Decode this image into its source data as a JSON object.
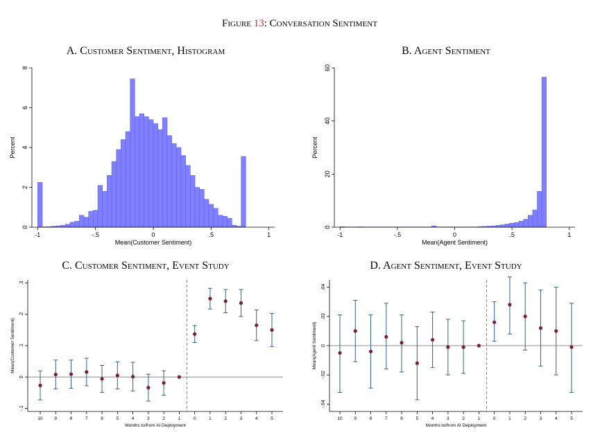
{
  "figure": {
    "label": "Figure",
    "number": "13",
    "sep": ":",
    "title": "Conversation Sentiment",
    "number_color": "#d62728"
  },
  "chart_data": [
    {
      "id": "A",
      "type": "bar",
      "title": "A. Customer Sentiment, Histogram",
      "xlabel": "Mean(Customer Sentiment)",
      "ylabel": "Percent",
      "xlim": [
        -1.05,
        1.05
      ],
      "ylim": [
        0,
        8
      ],
      "xticks": [
        -1,
        -0.5,
        0,
        0.5,
        1
      ],
      "xtick_labels": [
        "-1",
        "-.5",
        "0",
        ".5",
        "1"
      ],
      "yticks": [
        0,
        2,
        4,
        6,
        8
      ],
      "ytick_labels": [
        "0",
        "2",
        "4",
        "6",
        "8"
      ],
      "bin_start": -1,
      "bin_width": 0.04,
      "values": [
        2.25,
        0.02,
        0.03,
        0.05,
        0.07,
        0.1,
        0.15,
        0.25,
        0.3,
        0.6,
        0.5,
        0.8,
        0.85,
        2.1,
        1.8,
        2.6,
        3.3,
        3.9,
        4.4,
        4.8,
        7.45,
        5.55,
        5.7,
        5.55,
        5.4,
        5.2,
        4.9,
        5.5,
        4.6,
        4.2,
        4.0,
        3.6,
        3.1,
        2.6,
        2.0,
        1.9,
        1.4,
        1.15,
        0.95,
        0.6,
        0.55,
        0.45,
        0.1,
        0.05,
        3.55
      ],
      "bar_color": "#8080ff",
      "edge_color": "#5a5ae6"
    },
    {
      "id": "B",
      "type": "bar",
      "title": "B. Agent Sentiment",
      "xlabel": "Mean(Agent Sentiment)",
      "ylabel": "Percent",
      "xlim": [
        -1.05,
        1.05
      ],
      "ylim": [
        0,
        60
      ],
      "xticks": [
        -1,
        -0.5,
        0,
        0.5,
        1
      ],
      "xtick_labels": [
        "-1",
        "-.5",
        "0",
        ".5",
        "1"
      ],
      "yticks": [
        0,
        20,
        40,
        60
      ],
      "ytick_labels": [
        "0",
        "20",
        "40",
        "60"
      ],
      "bin_start": -1,
      "bin_width": 0.04,
      "values": [
        0.2,
        0.1,
        0.1,
        0.1,
        0.15,
        0.1,
        0.1,
        0.1,
        0.1,
        0.1,
        0.1,
        0.1,
        0.1,
        0.1,
        0.1,
        0.1,
        0.1,
        0.1,
        0.1,
        0.1,
        0.5,
        0.1,
        0.1,
        0.1,
        0.1,
        0.1,
        0.1,
        0.1,
        0.1,
        0.1,
        0.2,
        0.3,
        0.4,
        0.5,
        0.7,
        0.9,
        1.2,
        1.5,
        1.8,
        2.3,
        3.0,
        4.5,
        6.5,
        13.5,
        56.5
      ],
      "bar_color": "#8080ff",
      "edge_color": "#5a5ae6"
    },
    {
      "id": "C",
      "type": "scatter",
      "title": "C. Customer Sentiment, Event Study",
      "xlabel": "Months to/from AI Deployment",
      "ylabel": "Mean(Customer Sentiment)",
      "categories": [
        "10",
        "9",
        "8",
        "7",
        "6",
        "5",
        "4",
        "3",
        "2",
        "1",
        "0",
        "1",
        "2",
        "3",
        "4",
        "5"
      ],
      "ylim": [
        -0.11,
        0.31
      ],
      "yticks": [
        -0.1,
        0,
        0.1,
        0.2,
        0.3
      ],
      "ytick_labels": [
        "-.1",
        "0",
        ".1",
        ".2",
        ".3"
      ],
      "values": [
        -0.027,
        0.008,
        0.009,
        0.016,
        -0.006,
        0.005,
        0.001,
        -0.034,
        -0.019,
        0.0,
        0.137,
        0.25,
        0.242,
        0.236,
        0.165,
        0.15
      ],
      "ci_low": [
        -0.073,
        -0.038,
        -0.036,
        -0.028,
        -0.049,
        -0.038,
        -0.045,
        -0.077,
        -0.058,
        0.0,
        0.11,
        0.217,
        0.205,
        0.193,
        0.116,
        0.097
      ],
      "ci_high": [
        0.019,
        0.054,
        0.054,
        0.06,
        0.037,
        0.048,
        0.047,
        0.009,
        0.02,
        0.0,
        0.164,
        0.283,
        0.279,
        0.279,
        0.214,
        0.203
      ],
      "zero_line": 0,
      "event_line_between": [
        9,
        10
      ],
      "point_color": "#7a1f33",
      "ci_color": "#2f5f8a"
    },
    {
      "id": "D",
      "type": "scatter",
      "title": "D. Agent Sentiment, Event Study",
      "xlabel": "Months to/from AI Deployment",
      "ylabel": "Mean(Agent Sentiment)",
      "categories": [
        "10",
        "9",
        "8",
        "7",
        "6",
        "5",
        "4",
        "3",
        "2",
        "1",
        "0",
        "1",
        "2",
        "3",
        "4",
        "5"
      ],
      "ylim": [
        -0.045,
        0.045
      ],
      "yticks": [
        -0.04,
        -0.02,
        0,
        0.02,
        0.04
      ],
      "ytick_labels": [
        "-.04",
        "-.02",
        "0",
        ".02",
        ".04"
      ],
      "values": [
        -0.005,
        0.01,
        -0.004,
        0.006,
        0.002,
        -0.012,
        0.004,
        -0.001,
        -0.001,
        0.0,
        0.016,
        0.028,
        0.02,
        0.012,
        0.01,
        -0.001
      ],
      "ci_low": [
        -0.032,
        -0.011,
        -0.029,
        -0.016,
        -0.018,
        -0.037,
        -0.015,
        -0.02,
        -0.019,
        0.0,
        0.003,
        0.008,
        -0.003,
        -0.014,
        -0.02,
        -0.032
      ],
      "ci_high": [
        0.021,
        0.031,
        0.021,
        0.029,
        0.021,
        0.013,
        0.023,
        0.018,
        0.017,
        0.0,
        0.03,
        0.047,
        0.043,
        0.038,
        0.04,
        0.029
      ],
      "zero_line": 0,
      "event_line_between": [
        9,
        10
      ],
      "point_color": "#7a1f33",
      "ci_color": "#2f5f8a"
    }
  ]
}
